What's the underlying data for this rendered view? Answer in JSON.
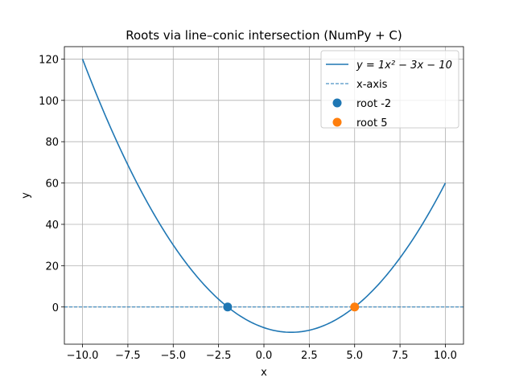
{
  "chart_data": {
    "type": "line",
    "title": "Roots via line–conic intersection (NumPy + C)",
    "xlabel": "x",
    "ylabel": "y",
    "xlim": [
      -11.0,
      11.0
    ],
    "ylim": [
      -18.0,
      126.0
    ],
    "grid": true,
    "legend_position": "top-right",
    "x_ticks": [
      -10.0,
      -7.5,
      -5.0,
      -2.5,
      0.0,
      2.5,
      5.0,
      7.5,
      10.0
    ],
    "x_tick_labels": [
      "−10.0",
      "−7.5",
      "−5.0",
      "−2.5",
      "0.0",
      "2.5",
      "5.0",
      "7.5",
      "10.0"
    ],
    "y_ticks": [
      0,
      20,
      40,
      60,
      80,
      100,
      120
    ],
    "y_tick_labels": [
      "0",
      "20",
      "40",
      "60",
      "80",
      "100",
      "120"
    ],
    "series": [
      {
        "kind": "curve",
        "legend_label": "y = 1x² − 3x − 10",
        "color": "#1f77b4",
        "coefficients": {
          "a": 1,
          "b": -3,
          "c": -10
        },
        "x_range": [
          -10,
          10
        ]
      },
      {
        "kind": "hline",
        "legend_label": "x-axis",
        "color": "#1f77b4",
        "y": 0
      },
      {
        "kind": "point",
        "legend_label": "root -2",
        "color": "#1f77b4",
        "x": -2,
        "y": 0
      },
      {
        "kind": "point",
        "legend_label": "root 5",
        "color": "#ff7f0e",
        "x": 5,
        "y": 0
      }
    ]
  }
}
